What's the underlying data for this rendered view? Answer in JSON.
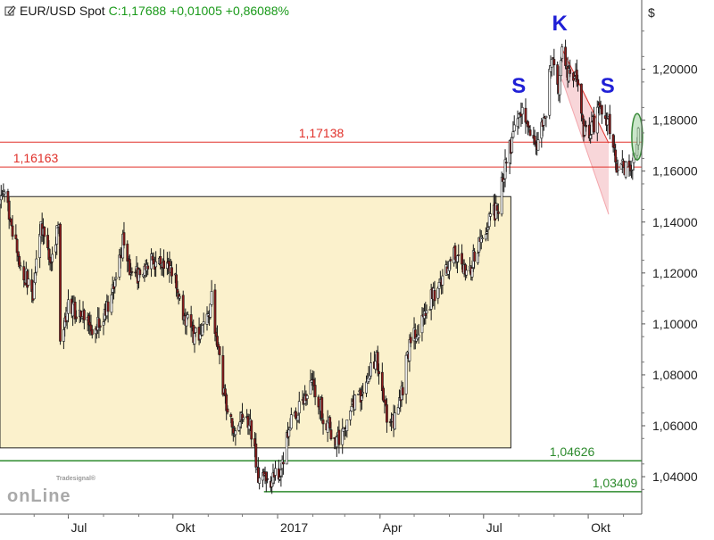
{
  "header": {
    "symbol": "EUR/USD Spot",
    "change": "C:1,17688 +0,01005 +0,86088%"
  },
  "axis": {
    "currency": "$"
  },
  "watermark": {
    "brand_small": "Tradesignal®",
    "brand_main": "onLine"
  },
  "colors": {
    "up": "#ffffff",
    "down": "#8b1a1a",
    "wick": "#1a1a1a",
    "range_box": "#fbf1cc",
    "red_line": "#e0302a",
    "green_line": "#2e8b2e",
    "channel": "#f6cccf",
    "pattern_label": "#1f1fd6"
  },
  "chart_data": {
    "type": "candlestick",
    "title": "EUR/USD Spot",
    "ylabel": "$",
    "ylim": [
      1.0253,
      1.2272
    ],
    "yticks": [
      "1,04000",
      "1,06000",
      "1,08000",
      "1,10000",
      "1,12000",
      "1,14000",
      "1,16000",
      "1,18000",
      "1,20000"
    ],
    "ytick_values": [
      1.04,
      1.06,
      1.08,
      1.1,
      1.12,
      1.14,
      1.16,
      1.18,
      1.2
    ],
    "xticks": [
      "Jul",
      "Okt",
      "2017",
      "Apr",
      "Jul",
      "Okt"
    ],
    "xtick_dates": [
      "2016-07-01",
      "2016-10-01",
      "2017-01-01",
      "2017-04-01",
      "2017-07-01",
      "2017-10-01"
    ],
    "xlim": [
      "2016-05-02",
      "2017-11-17"
    ],
    "grid": false,
    "last_close": 1.17688,
    "price_path": [
      [
        "2016-05-02",
        1.146
      ],
      [
        "2016-05-05",
        1.152
      ],
      [
        "2016-05-13",
        1.137
      ],
      [
        "2016-05-20",
        1.123
      ],
      [
        "2016-05-31",
        1.112
      ],
      [
        "2016-06-07",
        1.138
      ],
      [
        "2016-06-16",
        1.125
      ],
      [
        "2016-06-23",
        1.139
      ],
      [
        "2016-06-24",
        1.094
      ],
      [
        "2016-07-01",
        1.108
      ],
      [
        "2016-07-08",
        1.105
      ],
      [
        "2016-07-18",
        1.102
      ],
      [
        "2016-07-25",
        1.097
      ],
      [
        "2016-08-05",
        1.108
      ],
      [
        "2016-08-18",
        1.132
      ],
      [
        "2016-08-26",
        1.118
      ],
      [
        "2016-09-02",
        1.12
      ],
      [
        "2016-09-12",
        1.125
      ],
      [
        "2016-09-23",
        1.122
      ],
      [
        "2016-10-03",
        1.118
      ],
      [
        "2016-10-10",
        1.104
      ],
      [
        "2016-10-20",
        1.094
      ],
      [
        "2016-11-01",
        1.103
      ],
      [
        "2016-11-04",
        1.111
      ],
      [
        "2016-11-09",
        1.091
      ],
      [
        "2016-11-16",
        1.068
      ],
      [
        "2016-11-24",
        1.056
      ],
      [
        "2016-12-01",
        1.066
      ],
      [
        "2016-12-08",
        1.061
      ],
      [
        "2016-12-15",
        1.041
      ],
      [
        "2016-12-20",
        1.038
      ],
      [
        "2017-01-03",
        1.041
      ],
      [
        "2017-01-10",
        1.058
      ],
      [
        "2017-01-20",
        1.067
      ],
      [
        "2017-02-01",
        1.078
      ],
      [
        "2017-02-10",
        1.064
      ],
      [
        "2017-02-22",
        1.054
      ],
      [
        "2017-03-03",
        1.062
      ],
      [
        "2017-03-15",
        1.073
      ],
      [
        "2017-03-24",
        1.081
      ],
      [
        "2017-03-28",
        1.088
      ],
      [
        "2017-04-05",
        1.066
      ],
      [
        "2017-04-12",
        1.061
      ],
      [
        "2017-04-20",
        1.072
      ],
      [
        "2017-04-24",
        1.087
      ],
      [
        "2017-05-05",
        1.099
      ],
      [
        "2017-05-16",
        1.11
      ],
      [
        "2017-05-26",
        1.118
      ],
      [
        "2017-06-06",
        1.127
      ],
      [
        "2017-06-16",
        1.118
      ],
      [
        "2017-06-27",
        1.131
      ],
      [
        "2017-07-07",
        1.141
      ],
      [
        "2017-07-14",
        1.146
      ],
      [
        "2017-07-20",
        1.162
      ],
      [
        "2017-07-27",
        1.173
      ],
      [
        "2017-08-02",
        1.185
      ],
      [
        "2017-08-10",
        1.176
      ],
      [
        "2017-08-17",
        1.172
      ],
      [
        "2017-08-24",
        1.18
      ],
      [
        "2017-08-29",
        1.205
      ],
      [
        "2017-09-05",
        1.191
      ],
      [
        "2017-09-08",
        1.207
      ],
      [
        "2017-09-15",
        1.196
      ],
      [
        "2017-09-20",
        1.199
      ],
      [
        "2017-09-27",
        1.174
      ],
      [
        "2017-10-03",
        1.176
      ],
      [
        "2017-10-12",
        1.185
      ],
      [
        "2017-10-20",
        1.178
      ],
      [
        "2017-10-26",
        1.163
      ],
      [
        "2017-11-03",
        1.161
      ],
      [
        "2017-11-08",
        1.159
      ],
      [
        "2017-11-14",
        1.177
      ]
    ],
    "annotations": {
      "range_box": {
        "from": "2016-05-02",
        "to": "2017-07-25",
        "low": 1.0513,
        "high": 1.15
      },
      "horizontal_lines": [
        {
          "label": "1,17138",
          "value": 1.17138,
          "color": "red"
        },
        {
          "label": "1,16163",
          "value": 1.16163,
          "color": "red",
          "from": "2016-05-02"
        },
        {
          "label": "1,04626",
          "value": 1.04626,
          "color": "green"
        },
        {
          "label": "1,03409",
          "value": 1.03409,
          "color": "green",
          "from": "2016-12-20"
        }
      ],
      "channel": {
        "from": "2017-09-08",
        "to": "2017-11-17",
        "upper": [
          1.208,
          1.171
        ],
        "lower": [
          1.196,
          1.143
        ]
      },
      "pattern_labels": [
        {
          "text": "S",
          "date": "2017-08-01",
          "value": 1.1907
        },
        {
          "text": "K",
          "date": "2017-09-06",
          "value": 1.2152
        },
        {
          "text": "S",
          "date": "2017-10-18",
          "value": 1.1907
        }
      ],
      "highlight_ellipse": {
        "date": "2017-11-13",
        "value": 1.1735
      }
    }
  }
}
